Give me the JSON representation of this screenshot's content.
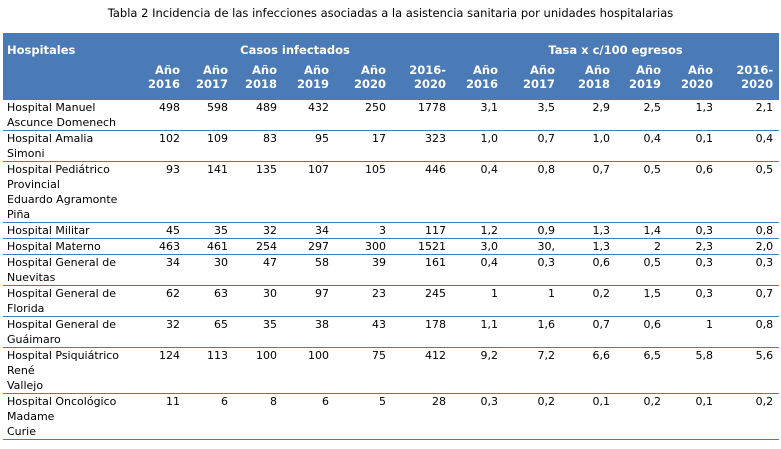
{
  "caption": "Tabla 2 Incidencia de las infecciones asociadas a la asistencia sanitaria por unidades hospitalarias",
  "header": {
    "hospitals": "Hospitales",
    "cases_group": "Casos infectados",
    "rate_group": "Tasa x c/100 egresos",
    "cases_years": [
      [
        "Año",
        "2016"
      ],
      [
        "Año",
        "2017"
      ],
      [
        "Año",
        "2018"
      ],
      [
        "Año",
        "2019"
      ],
      [
        "Año",
        "2020"
      ],
      [
        "2016-",
        "2020"
      ]
    ],
    "rate_years": [
      [
        "Año",
        "2016"
      ],
      [
        "Año",
        "2017"
      ],
      [
        "Año",
        "2018"
      ],
      [
        "Año",
        "2019"
      ],
      [
        "Año",
        "2020"
      ],
      [
        "2016-",
        "2020"
      ]
    ]
  },
  "rows": [
    {
      "name": [
        "Hospital Manuel",
        "Ascunce Domenech"
      ],
      "cases": [
        "498",
        "598",
        "489",
        "432",
        "250",
        "1778"
      ],
      "rates": [
        "3,1",
        "3,5",
        "2,9",
        "2,5",
        "1,3",
        "2,1"
      ]
    },
    {
      "name": [
        "Hospital Amalia",
        "Simoni"
      ],
      "cases": [
        "102",
        "109",
        "83",
        "95",
        "17",
        "323"
      ],
      "rates": [
        "1,0",
        "0,7",
        "1,0",
        "0,4",
        "0,1",
        "0,4"
      ]
    },
    {
      "name": [
        "Hospital Pediátrico",
        "Provincial",
        "Eduardo Agramonte",
        "Piña"
      ],
      "cases": [
        "93",
        "141",
        "135",
        "107",
        "105",
        "446"
      ],
      "rates": [
        "0,4",
        "0,8",
        "0,7",
        "0,5",
        "0,6",
        "0,5"
      ]
    },
    {
      "name": [
        "Hospital Militar"
      ],
      "cases": [
        "45",
        "35",
        "32",
        "34",
        "3",
        "117"
      ],
      "rates": [
        "1,2",
        "0,9",
        "1,3",
        "1,4",
        "0,3",
        "0,8"
      ]
    },
    {
      "name": [
        "Hospital Materno"
      ],
      "cases": [
        "463",
        "461",
        "254",
        "297",
        "300",
        "1521"
      ],
      "rates": [
        "3,0",
        "30,",
        "1,3",
        "2",
        "2,3",
        "2,0"
      ]
    },
    {
      "name": [
        "Hospital General de",
        "Nuevitas"
      ],
      "cases": [
        "34",
        "30",
        "47",
        "58",
        "39",
        "161"
      ],
      "rates": [
        "0,4",
        "0,3",
        "0,6",
        "0,5",
        "0,3",
        "0,3"
      ]
    },
    {
      "name": [
        "Hospital General de",
        "Florida"
      ],
      "cases": [
        "62",
        "63",
        "30",
        "97",
        "23",
        "245"
      ],
      "rates": [
        "1",
        "1",
        "0,2",
        "1,5",
        "0,3",
        "0,7"
      ]
    },
    {
      "name": [
        "Hospital General de",
        "Guáimaro"
      ],
      "cases": [
        "32",
        "65",
        "35",
        "38",
        "43",
        "178"
      ],
      "rates": [
        "1,1",
        "1,6",
        "0,7",
        "0,6",
        "1",
        "0,8"
      ]
    },
    {
      "name": [
        "Hospital Psiquiátrico",
        "René",
        "Vallejo"
      ],
      "cases": [
        "124",
        "113",
        "100",
        "100",
        "75",
        "412"
      ],
      "rates": [
        "9,2",
        "7,2",
        "6,6",
        "6,5",
        "5,8",
        "5,6"
      ]
    },
    {
      "name": [
        "Hospital Oncológico",
        "Madame",
        "Curie"
      ],
      "cases": [
        "11",
        "6",
        "8",
        "6",
        "5",
        "28"
      ],
      "rates": [
        "0,3",
        "0,2",
        "0,1",
        "0,2",
        "0,1",
        "0,2"
      ]
    }
  ]
}
